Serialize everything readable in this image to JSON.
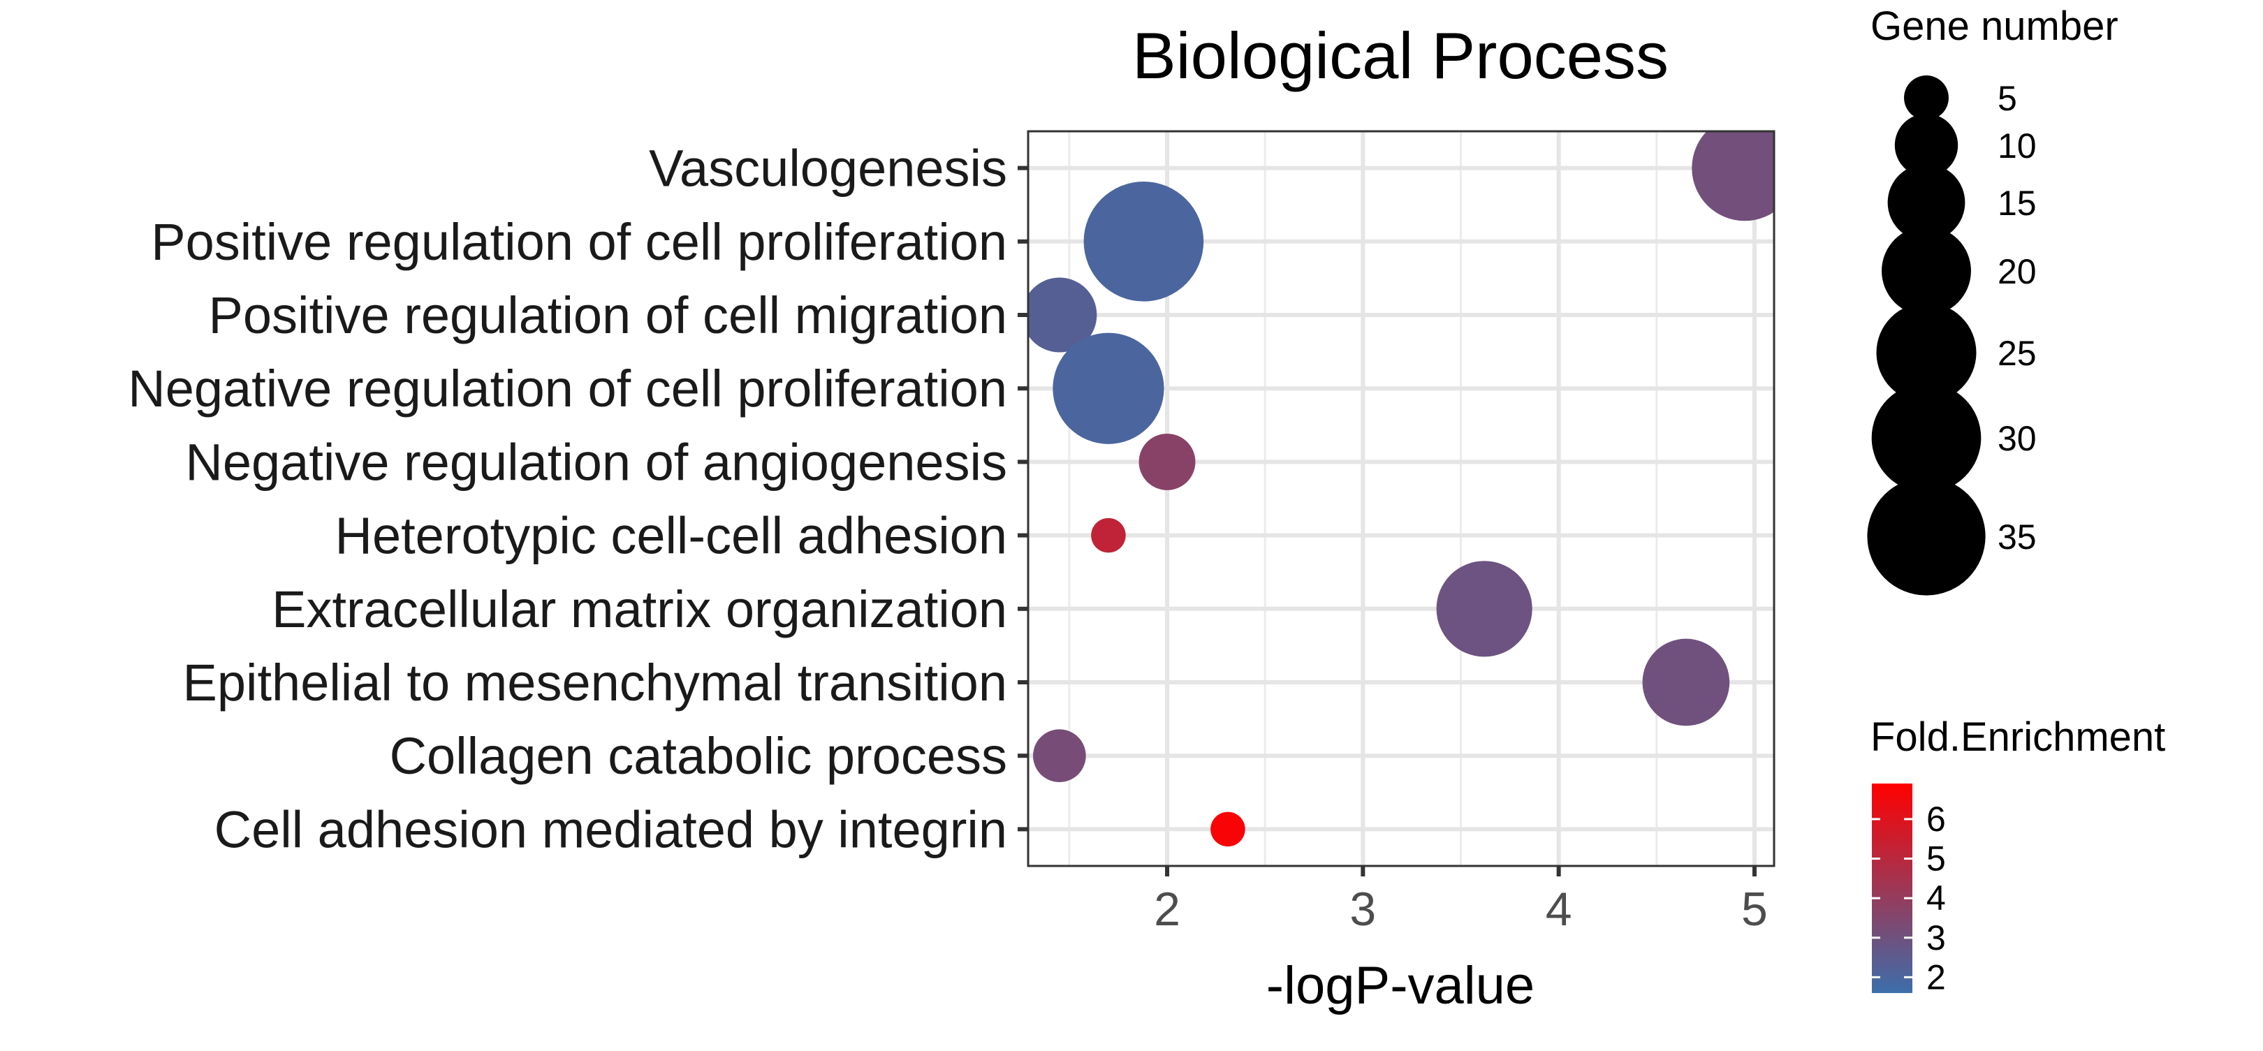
{
  "chart_data": {
    "type": "scatter",
    "title": "Biological Process",
    "xlabel": "-logP-value",
    "ylabel": "",
    "xlim": [
      1.29,
      5.1
    ],
    "xticks": [
      2,
      3,
      4,
      5
    ],
    "grid": true,
    "categories": [
      "Vasculogenesis",
      "Positive regulation of cell proliferation",
      "Positive regulation of cell migration",
      "Negative regulation of cell proliferation",
      "Negative regulation of angiogenesis",
      "Heterotypic cell-cell adhesion",
      "Extracellular matrix organization",
      "Epithelial to mesenchymal transition",
      "Collagen catabolic process",
      "Cell adhesion mediated by integrin"
    ],
    "points": [
      {
        "term": "Vasculogenesis",
        "x": 4.95,
        "gene_number": 28,
        "fold_enrichment": 3.1
      },
      {
        "term": "Positive regulation of cell proliferation",
        "x": 1.88,
        "gene_number": 36,
        "fold_enrichment": 2.0
      },
      {
        "term": "Positive regulation of cell migration",
        "x": 1.45,
        "gene_number": 14,
        "fold_enrichment": 2.3
      },
      {
        "term": "Negative regulation of cell proliferation",
        "x": 1.7,
        "gene_number": 31,
        "fold_enrichment": 2.0
      },
      {
        "term": "Negative regulation of angiogenesis",
        "x": 2.0,
        "gene_number": 8,
        "fold_enrichment": 3.7
      },
      {
        "term": "Heterotypic cell-cell adhesion",
        "x": 1.7,
        "gene_number": 3,
        "fold_enrichment": 5.2
      },
      {
        "term": "Extracellular matrix organization",
        "x": 3.62,
        "gene_number": 23,
        "fold_enrichment": 2.9
      },
      {
        "term": "Epithelial to mesenchymal transition",
        "x": 4.65,
        "gene_number": 19,
        "fold_enrichment": 3.0
      },
      {
        "term": "Collagen catabolic process",
        "x": 1.45,
        "gene_number": 7,
        "fold_enrichment": 3.2
      },
      {
        "term": "Cell adhesion mediated by integrin",
        "x": 2.31,
        "gene_number": 3,
        "fold_enrichment": 6.7
      }
    ],
    "size_legend": {
      "title": "Gene number",
      "values": [
        5,
        10,
        15,
        20,
        25,
        30,
        35
      ],
      "labels": [
        "5",
        "10",
        "15",
        "20",
        "25",
        "30",
        "35"
      ]
    },
    "color_legend": {
      "title": "Fold.Enrichment",
      "min": 1.6,
      "max": 6.9,
      "ticks": [
        2,
        3,
        4,
        5,
        6
      ],
      "labels": [
        "2",
        "3",
        "4",
        "5",
        "6"
      ],
      "low_color": "#3C6EAB",
      "high_color": "#FF0000"
    },
    "legend_position": "right"
  }
}
